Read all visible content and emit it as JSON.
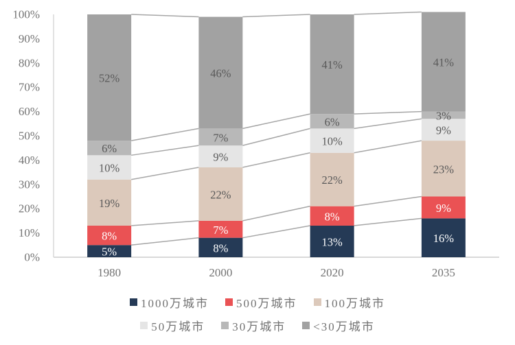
{
  "chart_data": {
    "type": "bar",
    "stacked": true,
    "percent_of_total": true,
    "title": "",
    "xlabel": "",
    "ylabel": "",
    "categories": [
      "1980",
      "2000",
      "2020",
      "2035"
    ],
    "series": [
      {
        "name": "1000万城市",
        "color": "#253a56",
        "label_color": "#ffffff",
        "values": [
          5,
          8,
          13,
          16
        ]
      },
      {
        "name": "500万城市",
        "color": "#ea5254",
        "label_color": "#ffffff",
        "values": [
          8,
          7,
          8,
          9
        ]
      },
      {
        "name": "100万城市",
        "color": "#dcc9bb",
        "label_color": "#595959",
        "values": [
          19,
          22,
          22,
          23
        ]
      },
      {
        "name": "50万城市",
        "color": "#e5e5e5",
        "label_color": "#595959",
        "values": [
          10,
          9,
          10,
          9
        ]
      },
      {
        "name": "30万城市",
        "color": "#b8b8b8",
        "label_color": "#595959",
        "values": [
          6,
          7,
          6,
          3
        ]
      },
      {
        "name": "<30万城市",
        "color": "#a2a2a2",
        "label_color": "#595959",
        "values": [
          52,
          46,
          41,
          41
        ]
      }
    ],
    "y_ticks": [
      "0%",
      "10%",
      "20%",
      "30%",
      "40%",
      "50%",
      "60%",
      "70%",
      "80%",
      "90%",
      "100%"
    ],
    "ylim": [
      0,
      100
    ],
    "value_suffix": "%",
    "grid": false,
    "legend_position": "bottom",
    "connector_line_color": "#a6a6a6",
    "axis_line_color": "#d9d9d9",
    "tick_label_color": "#737373",
    "legend_text_color": "#737373"
  }
}
